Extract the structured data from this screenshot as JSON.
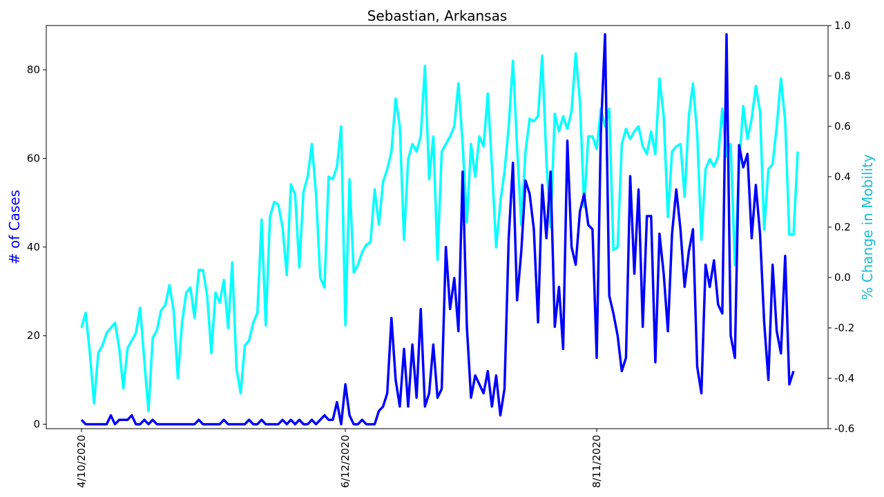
{
  "chart_data": {
    "type": "line",
    "title": "Sebastian, Arkansas",
    "xlabel": "",
    "ylabel_left": "# of Cases",
    "ylabel_right": "% Change in Mobility",
    "x_start": "4/10/2020",
    "x_end": "9/8/2020",
    "x_tick_labels": [
      "4/10/2020",
      "6/12/2020",
      "8/11/2020"
    ],
    "y_left_ticks": [
      0,
      20,
      40,
      60,
      80
    ],
    "y_right_ticks": [
      -0.6,
      -0.4,
      -0.2,
      0.0,
      0.2,
      0.4,
      0.6,
      0.8,
      1.0
    ],
    "y_left_lim": [
      -1,
      90
    ],
    "y_right_lim": [
      -0.6,
      1.0
    ],
    "grid": false,
    "series": [
      {
        "axis": "left",
        "color": "#0000ff",
        "values": [
          1,
          0,
          0,
          0,
          0,
          0,
          0,
          2,
          0,
          1,
          1,
          1,
          2,
          0,
          0,
          1,
          0,
          1,
          0,
          0,
          0,
          0,
          0,
          0,
          0,
          0,
          0,
          0,
          1,
          0,
          0,
          0,
          0,
          0,
          1,
          0,
          0,
          0,
          0,
          0,
          1,
          0,
          0,
          1,
          0,
          0,
          0,
          0,
          1,
          0,
          1,
          0,
          1,
          0,
          0,
          1,
          0,
          1,
          2,
          1,
          1,
          5,
          0,
          9,
          2,
          0,
          0,
          1,
          0,
          0,
          0,
          3,
          4,
          7,
          24,
          10,
          4,
          17,
          4,
          18,
          6,
          26,
          4,
          7,
          18,
          6,
          8,
          40,
          26,
          33,
          21,
          57,
          22,
          6,
          11,
          9,
          7,
          12,
          4,
          11,
          2,
          8,
          42,
          59,
          28,
          39,
          55,
          52,
          44,
          23,
          54,
          42,
          57,
          22,
          31,
          17,
          64,
          40,
          36,
          48,
          52,
          45,
          44,
          15,
          66,
          88,
          29,
          25,
          20,
          12,
          15,
          56,
          34,
          53,
          22,
          47,
          47,
          14,
          43,
          34,
          21,
          43,
          53,
          44,
          31,
          39,
          44,
          13,
          7,
          36,
          31,
          37,
          27,
          25,
          88,
          20,
          15,
          63,
          58,
          61,
          42,
          54,
          43,
          23,
          10,
          36,
          21,
          16,
          38,
          9,
          12
        ]
      },
      {
        "axis": "right",
        "color": "#00ffff",
        "values": [
          -0.2,
          -0.14,
          -0.3,
          -0.5,
          -0.3,
          -0.27,
          -0.22,
          -0.2,
          -0.18,
          -0.28,
          -0.44,
          -0.28,
          -0.25,
          -0.22,
          -0.12,
          -0.33,
          -0.53,
          -0.24,
          -0.21,
          -0.13,
          -0.11,
          -0.03,
          -0.13,
          -0.4,
          -0.18,
          -0.06,
          -0.04,
          -0.16,
          0.03,
          0.03,
          -0.07,
          -0.3,
          -0.06,
          -0.1,
          -0.01,
          -0.2,
          0.06,
          -0.36,
          -0.46,
          -0.27,
          -0.25,
          -0.18,
          -0.14,
          0.23,
          -0.19,
          0.24,
          0.3,
          0.29,
          0.2,
          0.01,
          0.37,
          0.33,
          0.04,
          0.34,
          0.4,
          0.53,
          0.33,
          0.0,
          -0.04,
          0.4,
          0.39,
          0.44,
          0.6,
          -0.19,
          0.39,
          0.02,
          0.05,
          0.1,
          0.13,
          0.14,
          0.35,
          0.21,
          0.38,
          0.43,
          0.5,
          0.71,
          0.6,
          0.15,
          0.47,
          0.53,
          0.5,
          0.56,
          0.84,
          0.39,
          0.56,
          0.07,
          0.5,
          0.53,
          0.56,
          0.6,
          0.77,
          0.53,
          0.22,
          0.53,
          0.4,
          0.56,
          0.52,
          0.73,
          0.44,
          0.12,
          0.3,
          0.42,
          0.6,
          0.86,
          0.52,
          0.21,
          0.5,
          0.63,
          0.62,
          0.64,
          0.88,
          0.46,
          0.2,
          0.65,
          0.58,
          0.64,
          0.59,
          0.66,
          0.89,
          0.7,
          0.28,
          0.56,
          0.56,
          0.51,
          0.67,
          0.6,
          0.67,
          0.11,
          0.12,
          0.53,
          0.59,
          0.55,
          0.58,
          0.6,
          0.52,
          0.49,
          0.58,
          0.49,
          0.79,
          0.64,
          0.24,
          0.5,
          0.52,
          0.53,
          0.32,
          0.64,
          0.77,
          0.57,
          0.15,
          0.43,
          0.47,
          0.44,
          0.48,
          0.67,
          0.48,
          0.53,
          0.05,
          0.45,
          0.68,
          0.55,
          0.63,
          0.76,
          0.66,
          0.19,
          0.43,
          0.45,
          0.6,
          0.79,
          0.62,
          0.17,
          0.17,
          0.5
        ]
      }
    ]
  }
}
